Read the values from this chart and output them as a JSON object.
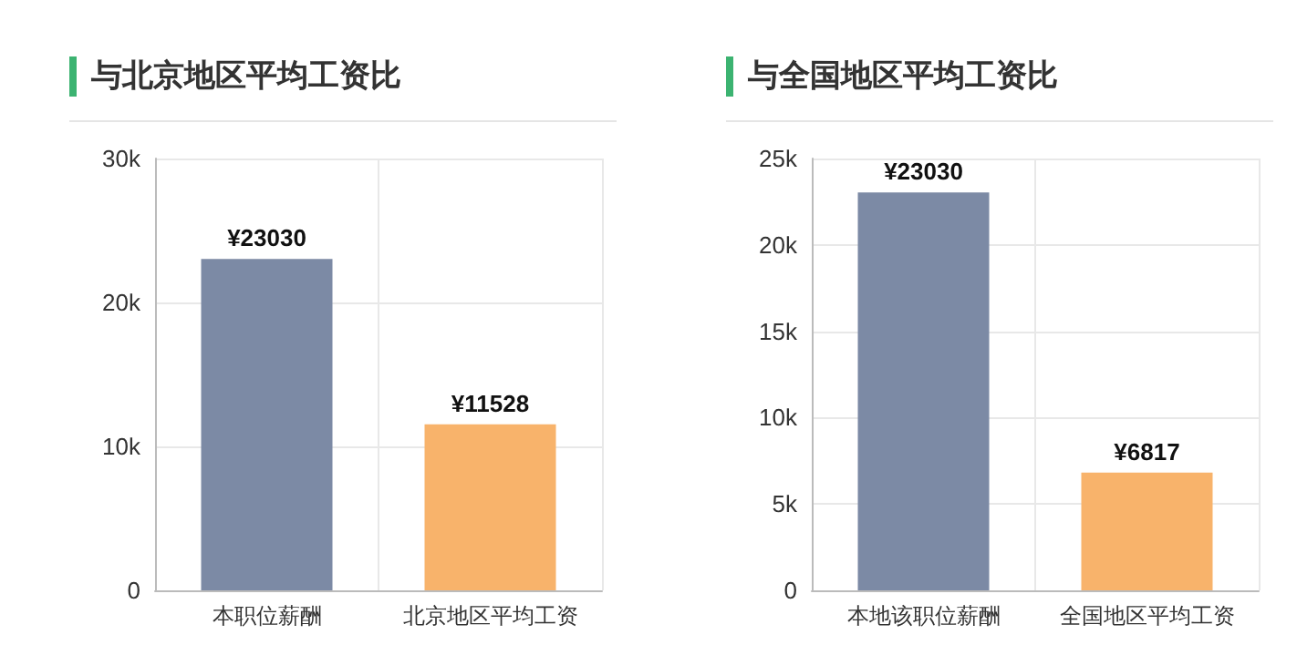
{
  "chart_data": [
    {
      "type": "bar",
      "title": "与北京地区平均工资比",
      "categories": [
        "本职位薪酬",
        "北京地区平均工资"
      ],
      "values": [
        23030,
        11528
      ],
      "colors": [
        "#7c8aa5",
        "#f8b36b"
      ],
      "value_labels": [
        "¥23030",
        "¥11528"
      ],
      "ylim": [
        0,
        30000
      ],
      "yticks": [
        0,
        {
          "value": 10000,
          "label": "10k"
        },
        {
          "value": 20000,
          "label": "20k"
        },
        {
          "value": 30000,
          "label": "30k"
        }
      ],
      "grid": true
    },
    {
      "type": "bar",
      "title": "与全国地区平均工资比",
      "categories": [
        "本地该职位薪酬",
        "全国地区平均工资"
      ],
      "values": [
        23030,
        6817
      ],
      "colors": [
        "#7c8aa5",
        "#f8b36b"
      ],
      "value_labels": [
        "¥23030",
        "¥6817"
      ],
      "ylim": [
        0,
        25000
      ],
      "yticks": [
        0,
        {
          "value": 5000,
          "label": "5k"
        },
        {
          "value": 10000,
          "label": "10k"
        },
        {
          "value": 15000,
          "label": "15k"
        },
        {
          "value": 20000,
          "label": "20k"
        },
        {
          "value": 25000,
          "label": "25k"
        }
      ],
      "grid": true
    }
  ]
}
